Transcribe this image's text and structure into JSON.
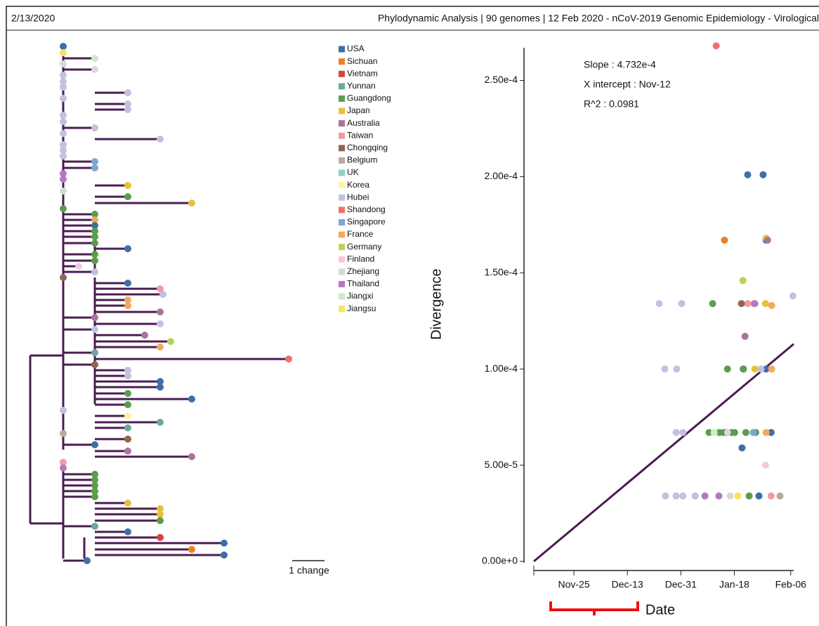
{
  "header": {
    "date": "2/13/2020",
    "title": "Phylodynamic Analysis | 90 genomes | 12 Feb 2020 - nCoV-2019 Genomic Epidemiology - Virological"
  },
  "tree": {
    "scale_label": "1 change"
  },
  "chart_data": {
    "type": "scatter",
    "x_label": "Date",
    "y_label": "Divergence",
    "annotations": [
      "Slope : 4.732e-4",
      "X intercept : Nov-12",
      "R^2 : 0.0981"
    ],
    "xlim": [
      -50.5,
      37
    ],
    "ylim": [
      0,
      0.000267
    ],
    "xticks": [
      {
        "value": -37,
        "label": "Nov-25"
      },
      {
        "value": -19,
        "label": "Dec-13"
      },
      {
        "value": -1,
        "label": "Dec-31"
      },
      {
        "value": 17,
        "label": "Jan-18"
      },
      {
        "value": 36,
        "label": "Feb-06"
      }
    ],
    "yticks": [
      {
        "value": 0,
        "label": "0.00e+0"
      },
      {
        "value": 5e-05,
        "label": "5.00e-5"
      },
      {
        "value": 0.0001,
        "label": "1.00e-4"
      },
      {
        "value": 0.00015,
        "label": "1.50e-4"
      },
      {
        "value": 0.0002,
        "label": "2.00e-4"
      },
      {
        "value": 0.00025,
        "label": "2.50e-4"
      }
    ],
    "fit": {
      "color": "#4b1c52",
      "x": [
        -50.5,
        37
      ],
      "values": [
        0,
        0.000113
      ]
    },
    "series": [
      {
        "name": "USA",
        "color": "#3f6ea6",
        "x": [
          21.5,
          26.7,
          27.7,
          20,
          27.7,
          19.6,
          29.4,
          25.3
        ],
        "values": [
          0.000201,
          0.000201,
          0.000167,
          0.0001,
          0.0001,
          5.9e-05,
          6.7e-05,
          3.4e-05
        ]
      },
      {
        "name": "Sichuan",
        "color": "#e8822a",
        "x": [
          13.7
        ],
        "values": [
          0.000167
        ]
      },
      {
        "name": "Vietnam",
        "color": "#d9433f",
        "x": [],
        "values": []
      },
      {
        "name": "Yunnan",
        "color": "#6aa89c",
        "x": [],
        "values": []
      },
      {
        "name": "Guangdong",
        "color": "#5a9e4b",
        "x": [
          9.7,
          14.7,
          20.1,
          8.5,
          12,
          13.4,
          16,
          17.1,
          20.9,
          24.2,
          22
        ],
        "values": [
          0.000134,
          0.0001,
          0.0001,
          6.7e-05,
          6.7e-05,
          6.7e-05,
          6.7e-05,
          6.7e-05,
          6.7e-05,
          6.7e-05,
          3.4e-05
        ]
      },
      {
        "name": "Japan",
        "color": "#e5c13c",
        "x": [
          27.7,
          23.9,
          27.5
        ],
        "values": [
          0.000168,
          0.0001,
          0.000134
        ]
      },
      {
        "name": "Australia",
        "color": "#a8739c",
        "x": [
          28.2,
          20.6,
          23.9
        ],
        "values": [
          0.000167,
          0.000117,
          0.000134
        ]
      },
      {
        "name": "Taiwan",
        "color": "#f39aa4",
        "x": [
          21.5,
          29.4
        ],
        "values": [
          0.000134,
          3.4e-05
        ]
      },
      {
        "name": "Chongqing",
        "color": "#8e6652",
        "x": [
          19.4,
          14.4
        ],
        "values": [
          0.000134,
          6.7e-05
        ]
      },
      {
        "name": "Belgium",
        "color": "#b8aaa0",
        "x": [
          32.4
        ],
        "values": [
          3.4e-05
        ]
      },
      {
        "name": "UK",
        "color": "#8fd0c4",
        "x": [],
        "values": []
      },
      {
        "name": "Korea",
        "color": "#fbf4a8",
        "x": [],
        "values": []
      },
      {
        "name": "Hubei",
        "color": "#c3c0e0",
        "x": [
          -8.3,
          -0.7,
          -6.4,
          -2.4,
          -2.6,
          -0.3,
          -6.2,
          -2.6,
          -0.3,
          3.8,
          36.7,
          26
        ],
        "values": [
          0.000134,
          0.000134,
          0.0001,
          0.0001,
          6.7e-05,
          6.7e-05,
          3.4e-05,
          3.4e-05,
          3.4e-05,
          3.4e-05,
          0.000138,
          0.0001
        ]
      },
      {
        "name": "Shandong",
        "color": "#f26f6a",
        "x": [
          10.9
        ],
        "values": [
          0.000268
        ]
      },
      {
        "name": "Singapore",
        "color": "#7ba6d6",
        "x": [
          23.4
        ],
        "values": [
          6.7e-05
        ]
      },
      {
        "name": "France",
        "color": "#f4a95a",
        "x": [
          29.6,
          29.6,
          27.7
        ],
        "values": [
          0.000133,
          0.0001,
          6.7e-05
        ]
      },
      {
        "name": "Germany",
        "color": "#b5d45a",
        "x": [
          19.9
        ],
        "values": [
          0.000146
        ]
      },
      {
        "name": "Finland",
        "color": "#f7c6de",
        "x": [
          27.5
        ],
        "values": [
          5e-05
        ]
      },
      {
        "name": "Zhejiang",
        "color": "#d8d8d8",
        "x": [
          15.6,
          14.7
        ],
        "values": [
          3.4e-05,
          6.7e-05
        ]
      },
      {
        "name": "Thailand",
        "color": "#b479be",
        "x": [
          7.1,
          11.8,
          23.7
        ],
        "values": [
          3.4e-05,
          3.4e-05,
          0.000134
        ]
      },
      {
        "name": "Jiangxi",
        "color": "#cfe8c9",
        "x": [
          10.2
        ],
        "values": [
          6.7e-05
        ]
      },
      {
        "name": "Jiangsu",
        "color": "#f6e560",
        "x": [
          18.2
        ],
        "values": [
          3.4e-05
        ]
      }
    ]
  }
}
